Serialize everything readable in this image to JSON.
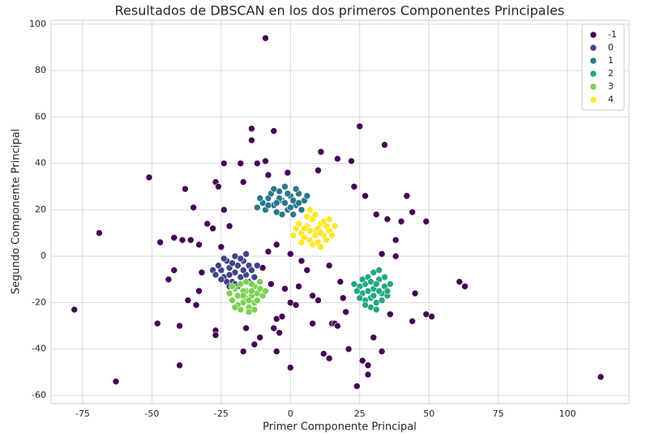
{
  "chart_data": {
    "type": "scatter",
    "title": "Resultados de DBSCAN en los dos primeros Componentes Principales",
    "xlabel": "Primer Componente Principal",
    "ylabel": "Segundo Componente Principal",
    "xlim": [
      -86.4,
      122.2
    ],
    "ylim": [
      -63.5,
      101.7
    ],
    "xticks": [
      -75,
      -50,
      -25,
      0,
      25,
      50,
      75,
      100
    ],
    "yticks": [
      -60,
      -40,
      -20,
      0,
      20,
      40,
      60,
      80,
      100
    ],
    "grid": true,
    "legend": "upper right",
    "series": [
      {
        "name": "-1",
        "color": "#440154",
        "x": [
          -9,
          -78,
          -69,
          -63,
          -51,
          -48,
          -47,
          -44,
          -42,
          -42,
          -40,
          -40,
          -39,
          -38,
          -37,
          -36,
          -35,
          -34,
          -33,
          -33,
          -32,
          -30,
          -27,
          -27,
          -27,
          -26,
          -24,
          -24,
          -22,
          -20,
          -18,
          -17,
          -17,
          -16,
          -14,
          -14,
          -13,
          -12,
          -11,
          -9,
          -8,
          -7,
          -6,
          -6,
          -5,
          -5,
          -4,
          -3,
          -2,
          -1,
          0,
          0,
          2,
          3,
          4,
          6,
          8,
          8,
          10,
          10,
          11,
          12,
          14,
          15,
          16,
          17,
          17,
          18,
          19,
          20,
          21,
          22,
          23,
          24,
          25,
          26,
          27,
          28,
          28,
          30,
          31,
          33,
          34,
          35,
          38,
          38,
          40,
          42,
          44,
          44,
          45,
          49,
          49,
          51,
          61,
          63,
          112,
          -10,
          -8,
          -5,
          0,
          14,
          -25,
          -28,
          36,
          33
        ],
        "y": [
          94,
          -23,
          10,
          -54,
          34,
          -29,
          6,
          -10,
          -6,
          8,
          -47,
          -30,
          7,
          29,
          -19,
          7,
          21,
          -21,
          -15,
          5,
          -7,
          14,
          -32,
          -34,
          32,
          30,
          40,
          20,
          13,
          -22,
          40,
          32,
          -41,
          -31,
          55,
          50,
          -38,
          40,
          -35,
          41,
          35,
          -12,
          -31,
          54,
          -41,
          -27,
          -33,
          -26,
          -14,
          36,
          -48,
          -20,
          -21,
          -13,
          -2,
          -6,
          -29,
          -17,
          -19,
          37,
          45,
          -42,
          -44,
          -29,
          -29,
          42,
          -30,
          -11,
          -18,
          -24,
          -40,
          41,
          30,
          -56,
          56,
          -45,
          26,
          -47,
          -51,
          -35,
          18,
          -41,
          48,
          16,
          0,
          7,
          15,
          26,
          19,
          -28,
          -16,
          15,
          -25,
          -26,
          -11,
          -13,
          -52,
          -5,
          2,
          5,
          1,
          -4,
          4,
          12,
          -25,
          1
        ]
      },
      {
        "name": "0",
        "color": "#414487",
        "x": [
          -20,
          -22,
          -18,
          -25,
          -15,
          -21,
          -17,
          -24,
          -19,
          -23,
          -16,
          -26,
          -14,
          -20,
          -18,
          -22,
          -28,
          -21,
          -17,
          -23,
          -13,
          -19,
          -25,
          -15,
          -20,
          -27,
          -12,
          -24,
          -16,
          -22
        ],
        "y": [
          -7,
          -5,
          -9,
          -6,
          -4,
          -11,
          -2,
          -9,
          -4,
          -2,
          -8,
          -4,
          -6,
          -12,
          -1,
          -8,
          -6,
          -3,
          -6,
          -11,
          -9,
          -13,
          -10,
          -11,
          0,
          -8,
          -4,
          -1,
          1,
          -13
        ]
      },
      {
        "name": "1",
        "color": "#2a788e",
        "x": [
          -3,
          -6,
          0,
          -8,
          2,
          -4,
          -1,
          -10,
          3,
          -5,
          -7,
          1,
          -2,
          4,
          -9,
          -4,
          0,
          -6,
          2,
          -11,
          5,
          -3,
          -1,
          -8,
          3,
          -5,
          1,
          -12,
          6,
          -2
        ],
        "y": [
          24,
          22,
          26,
          25,
          22,
          28,
          20,
          23,
          27,
          19,
          27,
          24,
          30,
          20,
          20,
          25,
          21,
          29,
          29,
          25,
          24,
          18,
          27,
          22,
          23,
          23,
          18,
          21,
          26,
          23
        ]
      },
      {
        "name": "2",
        "color": "#22a884",
        "x": [
          30,
          27,
          33,
          29,
          32,
          26,
          34,
          28,
          31,
          25,
          35,
          29,
          32,
          27,
          30,
          24,
          36,
          28,
          31,
          33,
          26,
          29,
          34,
          23,
          30,
          32,
          27,
          35,
          25,
          31
        ],
        "y": [
          -14,
          -12,
          -16,
          -18,
          -10,
          -16,
          -13,
          -9,
          -20,
          -13,
          -17,
          -11,
          -15,
          -19,
          -7,
          -15,
          -12,
          -15,
          -12,
          -19,
          -10,
          -22,
          -9,
          -12,
          -17,
          -6,
          -21,
          -15,
          -18,
          -23
        ]
      },
      {
        "name": "3",
        "color": "#7ad151",
        "x": [
          -16,
          -19,
          -13,
          -17,
          -14,
          -20,
          -12,
          -18,
          -15,
          -11,
          -21,
          -16,
          -13,
          -17,
          -10,
          -19,
          -14,
          -22,
          -15,
          -12,
          -18,
          -16,
          -9,
          -20,
          -13,
          -11,
          -17,
          -14,
          -21,
          -15
        ],
        "y": [
          -15,
          -17,
          -13,
          -20,
          -17,
          -14,
          -16,
          -12,
          -22,
          -14,
          -19,
          -18,
          -20,
          -15,
          -17,
          -21,
          -12,
          -16,
          -24,
          -19,
          -23,
          -11,
          -15,
          -22,
          -23,
          -11,
          -17,
          -15,
          -13,
          -19
        ]
      },
      {
        "name": "4",
        "color": "#fde725",
        "x": [
          9,
          6,
          12,
          4,
          11,
          7,
          14,
          8,
          2,
          10,
          13,
          5,
          9,
          15,
          3,
          11,
          7,
          12,
          1,
          8,
          16,
          10,
          6,
          13,
          4,
          9,
          14,
          5,
          11,
          7
        ],
        "y": [
          11,
          13,
          9,
          10,
          14,
          7,
          11,
          16,
          12,
          6,
          13,
          8,
          18,
          9,
          14,
          4,
          11,
          15,
          9,
          5,
          13,
          12,
          17,
          7,
          6,
          9,
          16,
          12,
          10,
          20
        ]
      }
    ]
  }
}
